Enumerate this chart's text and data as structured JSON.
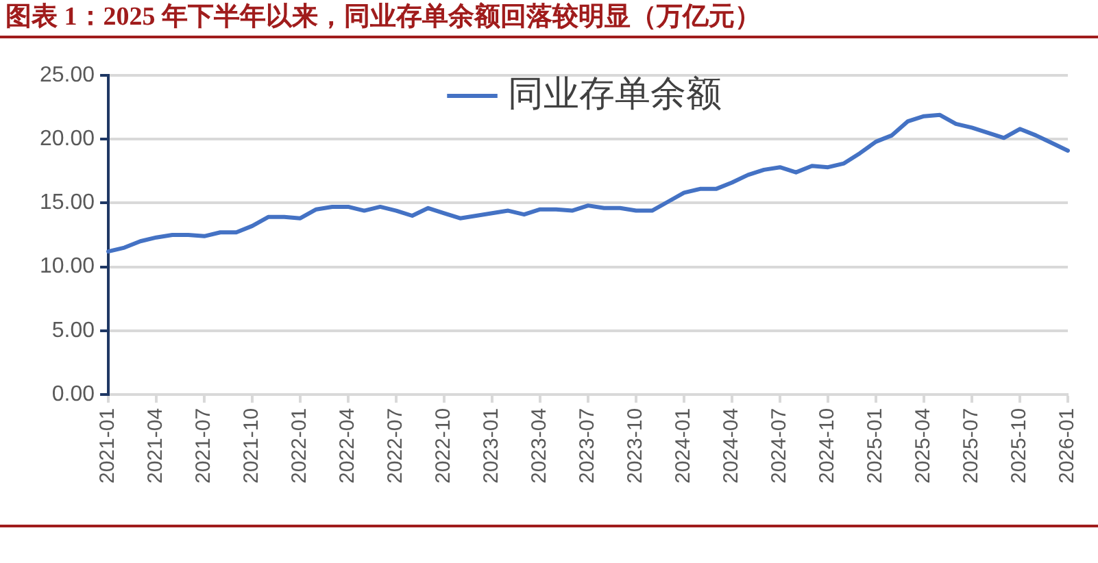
{
  "chart_data": {
    "type": "line",
    "title": "图表 1：2025 年下半年以来，同业存单余额回落较明显（万亿元）",
    "categories": [
      "2021-01",
      null,
      null,
      "2021-04",
      null,
      null,
      "2021-07",
      null,
      null,
      "2021-10",
      null,
      null,
      "2022-01",
      null,
      null,
      "2022-04",
      null,
      null,
      "2022-07",
      null,
      null,
      "2022-10",
      null,
      null,
      "2023-01",
      null,
      null,
      "2023-04",
      null,
      null,
      "2023-07",
      null,
      null,
      "2023-10",
      null,
      null,
      "2024-01",
      null,
      null,
      "2024-04",
      null,
      null,
      "2024-07",
      null,
      null,
      "2024-10",
      null,
      null,
      "2025-01",
      null,
      null,
      "2025-04",
      null,
      null,
      "2025-07",
      null,
      null,
      "2025-10",
      null,
      null,
      "2026-01"
    ],
    "series": [
      {
        "name": "同业存单余额",
        "color": "#4472c4",
        "values": [
          11.2,
          11.5,
          12.0,
          12.3,
          12.5,
          12.5,
          12.4,
          12.7,
          12.7,
          13.2,
          13.9,
          13.9,
          13.8,
          14.5,
          14.7,
          14.7,
          14.4,
          14.7,
          14.4,
          14.0,
          14.6,
          14.2,
          13.8,
          14.0,
          14.2,
          14.4,
          14.1,
          14.5,
          14.5,
          14.4,
          14.8,
          14.6,
          14.6,
          14.4,
          14.4,
          15.1,
          15.8,
          16.1,
          16.1,
          16.6,
          17.2,
          17.6,
          17.8,
          17.4,
          17.9,
          17.8,
          18.1,
          18.9,
          19.8,
          20.3,
          21.4,
          21.8,
          21.9,
          21.2,
          20.9,
          20.5,
          20.1,
          20.8,
          20.3,
          19.7,
          19.1
        ]
      }
    ],
    "ylim": [
      0,
      25
    ],
    "yticks": [
      {
        "value": 0,
        "label": "0.00"
      },
      {
        "value": 5,
        "label": "5.00"
      },
      {
        "value": 10,
        "label": "10.00"
      },
      {
        "value": 15,
        "label": "15.00"
      },
      {
        "value": 20,
        "label": "20.00"
      },
      {
        "value": 25,
        "label": "25.00"
      }
    ],
    "grid": "y",
    "legend": "top"
  }
}
